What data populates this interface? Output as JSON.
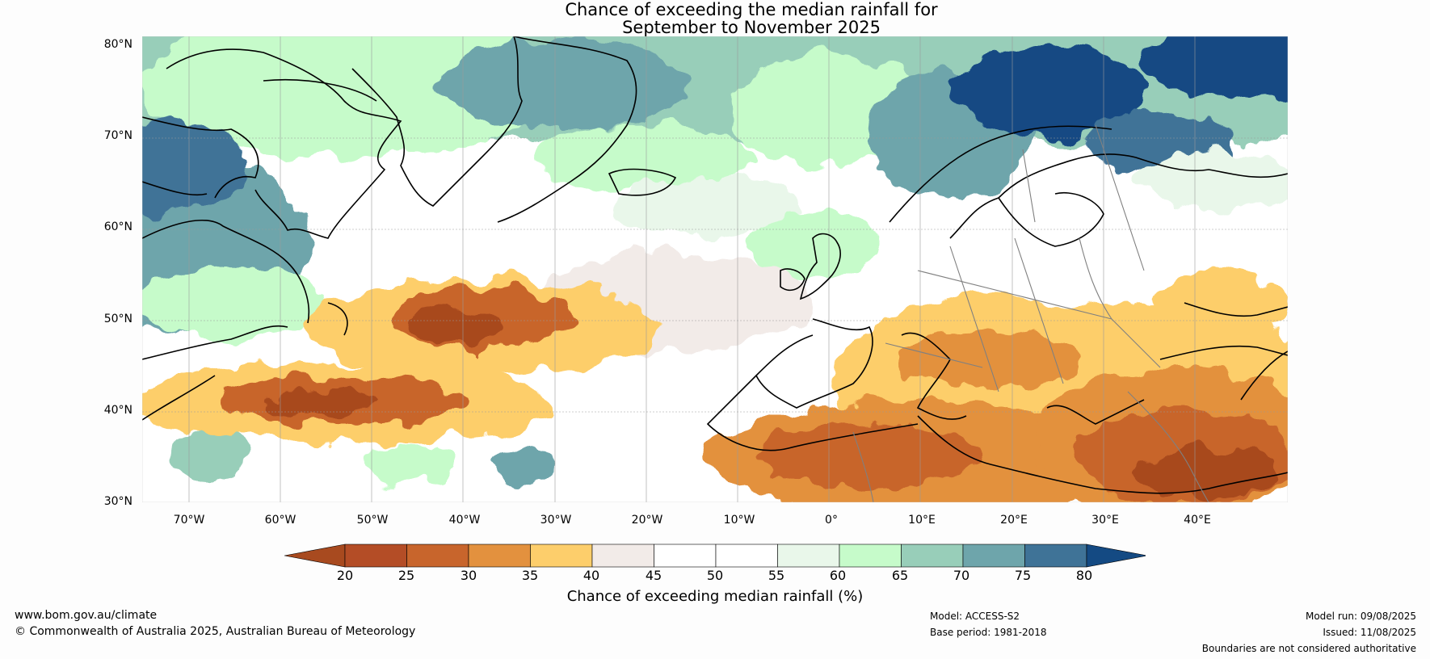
{
  "title": {
    "line1": "Chance of exceeding the median rainfall for",
    "line2": "September to November 2025"
  },
  "map": {
    "lat_labels": [
      "80°N",
      "70°N",
      "60°N",
      "50°N",
      "40°N",
      "30°N"
    ],
    "lon_labels": [
      "70°W",
      "60°W",
      "50°W",
      "40°W",
      "30°W",
      "20°W",
      "10°W",
      "0°",
      "10°E",
      "20°E",
      "30°E",
      "40°E"
    ]
  },
  "colorbar": {
    "ticks": [
      "20",
      "25",
      "30",
      "35",
      "40",
      "45",
      "50",
      "55",
      "60",
      "65",
      "70",
      "75",
      "80"
    ],
    "label": "Chance of exceeding median rainfall (%)",
    "colors": [
      "#a84a1f",
      "#b44d26",
      "#c8652c",
      "#e3913e",
      "#fdce6b",
      "#f2ebe8",
      "#ffffff",
      "#ffffff",
      "#e9f7ea",
      "#c6fbca",
      "#98ceb9",
      "#6ea5ab",
      "#3f7397",
      "#144a83"
    ]
  },
  "footer": {
    "website": "www.bom.gov.au/climate",
    "copyright": "© Commonwealth of Australia 2025, Australian Bureau of Meteorology",
    "model": "Model: ACCESS-S2",
    "base_period": "Base period: 1981-2018",
    "model_run": "Model run: 09/08/2025",
    "issued": "Issued: 11/08/2025",
    "disclaimer": "Boundaries are not considered authoritative"
  }
}
